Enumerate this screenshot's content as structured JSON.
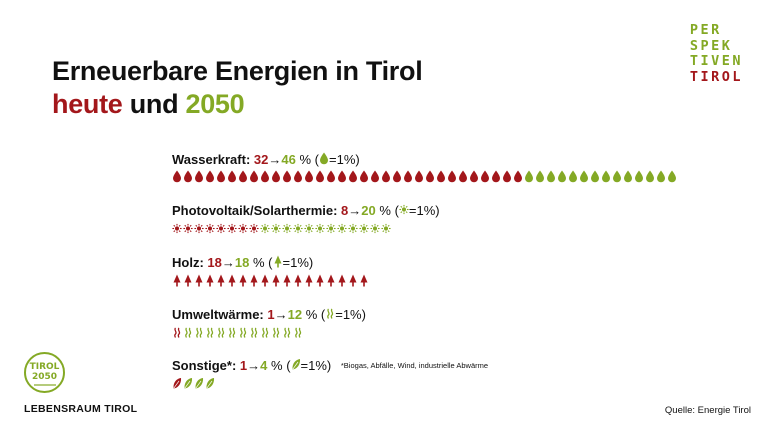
{
  "title": {
    "line1": "Erneuerbare Energien in Tirol",
    "line2_a": "heute",
    "line2_b": "und",
    "line2_c": "2050"
  },
  "brand": {
    "lines": [
      "PER",
      "SPEK",
      "TIVEN",
      "TIROL"
    ]
  },
  "colors": {
    "red": "#a3171b",
    "green": "#84a925"
  },
  "rows": [
    {
      "name": "Wasserkraft:",
      "today": "32",
      "arrow": "→",
      "future": "46",
      "unit": "%",
      "legend_open": "(",
      "legend_close": "=1%)",
      "icon": "drop-icon",
      "count_today": 32,
      "count_future": 46
    },
    {
      "name": "Photovoltaik/Solarthermie:",
      "today": "8",
      "arrow": "→",
      "future": "20",
      "unit": "%",
      "legend_open": "(",
      "legend_close": "=1%)",
      "icon": "sun-icon",
      "count_today": 8,
      "count_future": 20
    },
    {
      "name": "Holz:",
      "today": "18",
      "arrow": "→",
      "future": "18",
      "unit": "%",
      "legend_open": "(",
      "legend_close": "=1%)",
      "icon": "tree-icon",
      "count_today": 18,
      "count_future": 18
    },
    {
      "name": "Umweltwärme:",
      "today": "1",
      "arrow": "→",
      "future": "12",
      "unit": "%",
      "legend_open": "(",
      "legend_close": "=1%)",
      "icon": "heat-wave-icon",
      "count_today": 1,
      "count_future": 12
    },
    {
      "name": "Sonstige*:",
      "today": "1",
      "arrow": "→",
      "future": "4",
      "unit": "%",
      "legend_open": "(",
      "legend_close": "=1%)",
      "icon": "leaf-icon",
      "count_today": 1,
      "count_future": 4,
      "note": "*Biogas, Abfälle, Wind, industrielle Abwärme"
    }
  ],
  "badge": {
    "line1": "TIROL",
    "line2": "2050"
  },
  "footer": {
    "logo_text": "LEBENSRAUM TIROL",
    "source": "Quelle: Energie Tirol"
  }
}
